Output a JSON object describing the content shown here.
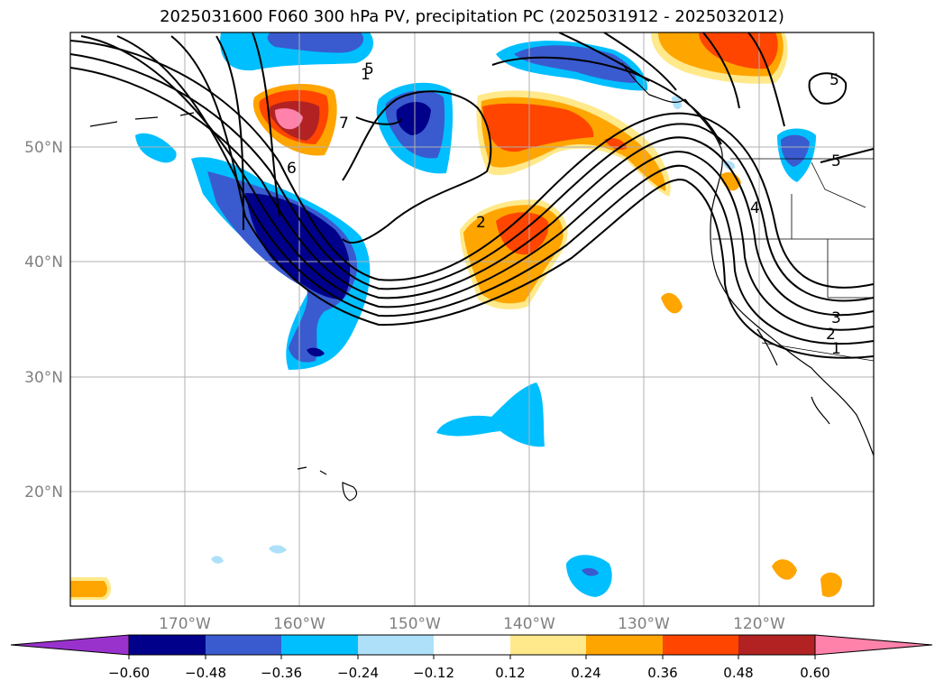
{
  "title": "2025031600 F060 300 hPa PV, precipitation PC (2025031912 - 2025032012)",
  "map": {
    "projection_extent": {
      "lon": [
        -180,
        -110
      ],
      "lat": [
        10,
        60
      ]
    },
    "gridlines": true,
    "lat_labels": [
      "50°N",
      "40°N",
      "30°N",
      "20°N"
    ],
    "lon_labels": [
      "170°W",
      "160°W",
      "150°W",
      "140°W",
      "130°W",
      "120°W"
    ],
    "contour_labels": [
      "1",
      "5",
      "6",
      "7",
      "2",
      "4",
      "5",
      "1",
      "2",
      "3",
      "5"
    ]
  },
  "colorbar": {
    "tick_labels": [
      "−0.60",
      "−0.48",
      "−0.36",
      "−0.24",
      "−0.12",
      "0.12",
      "0.24",
      "0.36",
      "0.48",
      "0.60"
    ],
    "colors": [
      "#9932cc",
      "#00008b",
      "#3a5bcf",
      "#00bfff",
      "#aee0fa",
      "#ffffff",
      "#ffe98a",
      "#ffa500",
      "#ff4500",
      "#b22222",
      "#ff82ab"
    ]
  }
}
